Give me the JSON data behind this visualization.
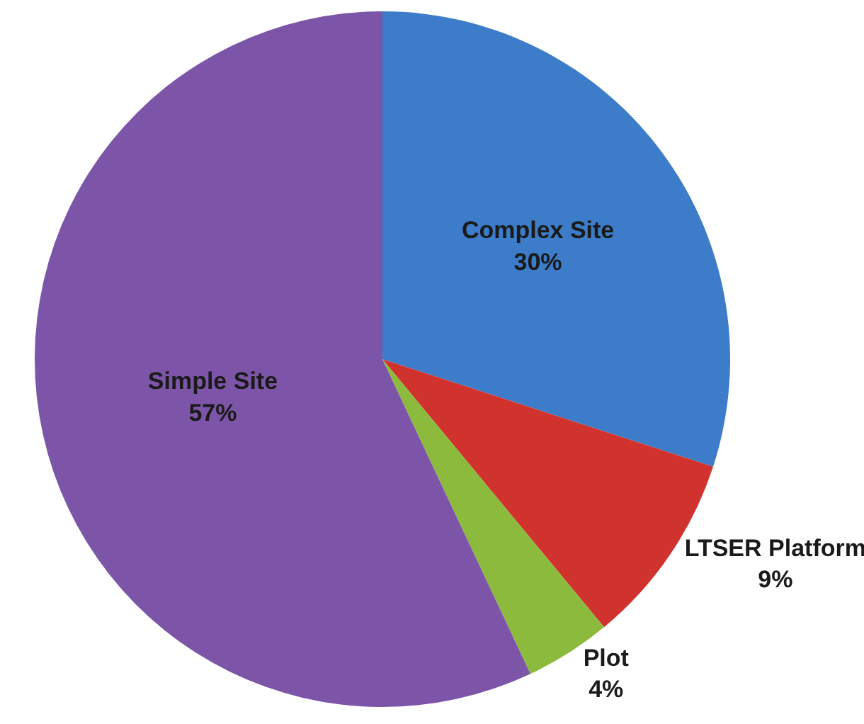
{
  "chart_data": {
    "type": "pie",
    "categories": [
      "Complex Site",
      "LTSER Platform",
      "Plot",
      "Simple Site"
    ],
    "values": [
      30,
      9,
      4,
      57
    ],
    "value_labels": [
      "30%",
      "9%",
      "4%",
      "57%"
    ],
    "colors": [
      "#3d7cc9",
      "#d0332e",
      "#8cba3c",
      "#7d55a8"
    ]
  }
}
